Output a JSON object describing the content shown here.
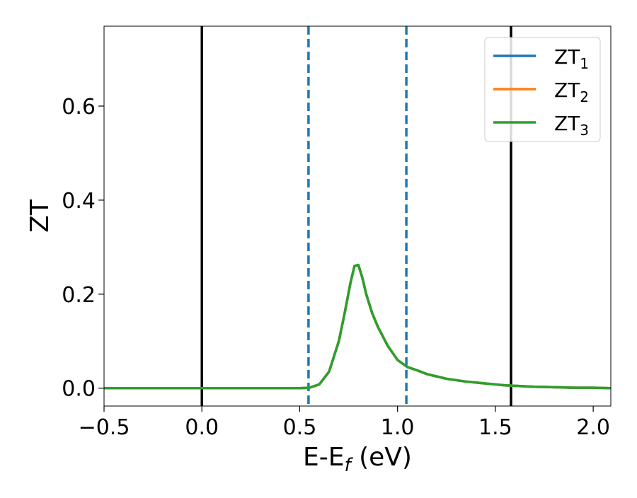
{
  "chart_data": {
    "type": "line",
    "xlabel": "E-E",
    "xlabel_sub": "f",
    "xlabel_unit": " (eV)",
    "ylabel": "ZT",
    "xlim": [
      -0.5,
      2.09
    ],
    "ylim": [
      -0.038,
      0.77
    ],
    "x_ticks": [
      -0.5,
      0.0,
      0.5,
      1.0,
      1.5,
      2.0
    ],
    "x_tick_labels": [
      "−0.5",
      "0.0",
      "0.5",
      "1.0",
      "1.5",
      "2.0"
    ],
    "y_ticks": [
      0.0,
      0.2,
      0.4,
      0.6
    ],
    "y_tick_labels": [
      "0.0",
      "0.2",
      "0.4",
      "0.6"
    ],
    "grid": false,
    "legend_position": "top-right",
    "vertical_lines": [
      {
        "x": 0.0,
        "style": "solid",
        "color": "#000000"
      },
      {
        "x": 0.545,
        "style": "dashed",
        "color": "#1f77b4"
      },
      {
        "x": 1.045,
        "style": "dashed",
        "color": "#1f77b4"
      },
      {
        "x": 1.58,
        "style": "solid",
        "color": "#000000"
      }
    ],
    "series": [
      {
        "name": "ZT",
        "name_sub": "1",
        "color": "#1f77b4",
        "x": [
          -0.5,
          0.0,
          0.4,
          0.5,
          0.55,
          0.6,
          0.65,
          0.7,
          0.73,
          0.76,
          0.78,
          0.8,
          0.82,
          0.84,
          0.87,
          0.9,
          0.95,
          1.0,
          1.05,
          1.1,
          1.15,
          1.2,
          1.25,
          1.3,
          1.35,
          1.4,
          1.45,
          1.5,
          1.55,
          1.6,
          1.65,
          1.7,
          1.8,
          1.9,
          2.0,
          2.09
        ],
        "y": [
          0.0,
          0.0,
          0.0,
          0.0,
          0.001,
          0.008,
          0.035,
          0.1,
          0.16,
          0.225,
          0.26,
          0.262,
          0.235,
          0.2,
          0.16,
          0.13,
          0.09,
          0.06,
          0.045,
          0.038,
          0.03,
          0.025,
          0.02,
          0.017,
          0.014,
          0.012,
          0.01,
          0.008,
          0.006,
          0.005,
          0.004,
          0.003,
          0.002,
          0.001,
          0.001,
          0.0
        ]
      },
      {
        "name": "ZT",
        "name_sub": "2",
        "color": "#ff7f0e",
        "x": [
          -0.5,
          0.0,
          0.4,
          0.5,
          0.55,
          0.6,
          0.65,
          0.7,
          0.73,
          0.76,
          0.78,
          0.8,
          0.82,
          0.84,
          0.87,
          0.9,
          0.95,
          1.0,
          1.05,
          1.1,
          1.15,
          1.2,
          1.25,
          1.3,
          1.35,
          1.4,
          1.45,
          1.5,
          1.55,
          1.6,
          1.65,
          1.7,
          1.8,
          1.9,
          2.0,
          2.09
        ],
        "y": [
          0.0,
          0.0,
          0.0,
          0.0,
          0.001,
          0.008,
          0.035,
          0.1,
          0.16,
          0.225,
          0.26,
          0.262,
          0.235,
          0.2,
          0.16,
          0.13,
          0.09,
          0.06,
          0.045,
          0.038,
          0.03,
          0.025,
          0.02,
          0.017,
          0.014,
          0.012,
          0.01,
          0.008,
          0.006,
          0.005,
          0.004,
          0.003,
          0.002,
          0.001,
          0.001,
          0.0
        ]
      },
      {
        "name": "ZT",
        "name_sub": "3",
        "color": "#2ca02c",
        "x": [
          -0.5,
          0.0,
          0.4,
          0.5,
          0.55,
          0.6,
          0.65,
          0.7,
          0.73,
          0.76,
          0.78,
          0.8,
          0.82,
          0.84,
          0.87,
          0.9,
          0.95,
          1.0,
          1.05,
          1.1,
          1.15,
          1.2,
          1.25,
          1.3,
          1.35,
          1.4,
          1.45,
          1.5,
          1.55,
          1.6,
          1.65,
          1.7,
          1.8,
          1.9,
          2.0,
          2.09
        ],
        "y": [
          0.0,
          0.0,
          0.0,
          0.0,
          0.001,
          0.008,
          0.035,
          0.1,
          0.16,
          0.225,
          0.26,
          0.262,
          0.235,
          0.2,
          0.16,
          0.13,
          0.09,
          0.06,
          0.045,
          0.038,
          0.03,
          0.025,
          0.02,
          0.017,
          0.014,
          0.012,
          0.01,
          0.008,
          0.006,
          0.005,
          0.004,
          0.003,
          0.002,
          0.001,
          0.001,
          0.0
        ]
      }
    ]
  }
}
